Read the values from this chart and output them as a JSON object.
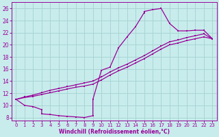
{
  "xlabel": "Windchill (Refroidissement éolien,°C)",
  "ylabel": "",
  "bg_color": "#c8ecec",
  "grid_color": "#aad4d4",
  "line_color": "#990099",
  "xlim": [
    -0.5,
    23.5
  ],
  "ylim": [
    7.5,
    27
  ],
  "xticks": [
    0,
    1,
    2,
    3,
    4,
    5,
    6,
    7,
    8,
    9,
    10,
    11,
    12,
    13,
    14,
    15,
    16,
    17,
    18,
    19,
    20,
    21,
    22,
    23
  ],
  "yticks": [
    8,
    10,
    12,
    14,
    16,
    18,
    20,
    22,
    24,
    26
  ],
  "series1": [
    [
      0,
      11.0
    ],
    [
      1,
      10.0
    ],
    [
      2,
      9.8
    ],
    [
      3,
      9.3
    ],
    [
      3,
      8.6
    ],
    [
      4,
      8.5
    ],
    [
      5,
      8.3
    ],
    [
      6,
      8.2
    ],
    [
      7,
      8.1
    ],
    [
      8,
      8.0
    ],
    [
      9,
      8.3
    ],
    [
      9,
      11.0
    ],
    [
      10,
      15.8
    ],
    [
      11,
      16.3
    ],
    [
      12,
      19.5
    ],
    [
      13,
      21.3
    ],
    [
      14,
      23.0
    ],
    [
      15,
      25.3
    ],
    [
      15,
      25.5
    ],
    [
      16,
      25.8
    ],
    [
      17,
      26.0
    ],
    [
      18,
      23.5
    ],
    [
      19,
      22.3
    ],
    [
      20,
      22.3
    ],
    [
      21,
      22.4
    ],
    [
      22,
      22.4
    ],
    [
      23,
      21.0
    ]
  ],
  "series2": [
    [
      0,
      11.0
    ],
    [
      1,
      11.4
    ],
    [
      2,
      11.7
    ],
    [
      3,
      12.1
    ],
    [
      4,
      12.5
    ],
    [
      5,
      12.8
    ],
    [
      6,
      13.1
    ],
    [
      7,
      13.4
    ],
    [
      8,
      13.7
    ],
    [
      9,
      14.0
    ],
    [
      10,
      14.7
    ],
    [
      11,
      15.5
    ],
    [
      12,
      16.2
    ],
    [
      13,
      16.8
    ],
    [
      14,
      17.5
    ],
    [
      15,
      18.2
    ],
    [
      16,
      19.0
    ],
    [
      17,
      19.8
    ],
    [
      18,
      20.5
    ],
    [
      19,
      20.8
    ],
    [
      20,
      21.2
    ],
    [
      21,
      21.5
    ],
    [
      22,
      21.8
    ],
    [
      23,
      21.0
    ]
  ],
  "series3": [
    [
      0,
      11.0
    ],
    [
      1,
      11.3
    ],
    [
      2,
      11.5
    ],
    [
      3,
      11.8
    ],
    [
      4,
      12.1
    ],
    [
      5,
      12.4
    ],
    [
      6,
      12.7
    ],
    [
      7,
      13.0
    ],
    [
      8,
      13.2
    ],
    [
      9,
      13.5
    ],
    [
      10,
      14.2
    ],
    [
      11,
      15.0
    ],
    [
      12,
      15.7
    ],
    [
      13,
      16.3
    ],
    [
      14,
      17.0
    ],
    [
      15,
      17.7
    ],
    [
      16,
      18.5
    ],
    [
      17,
      19.3
    ],
    [
      18,
      20.0
    ],
    [
      19,
      20.3
    ],
    [
      20,
      20.7
    ],
    [
      21,
      21.0
    ],
    [
      22,
      21.3
    ],
    [
      23,
      21.0
    ]
  ]
}
